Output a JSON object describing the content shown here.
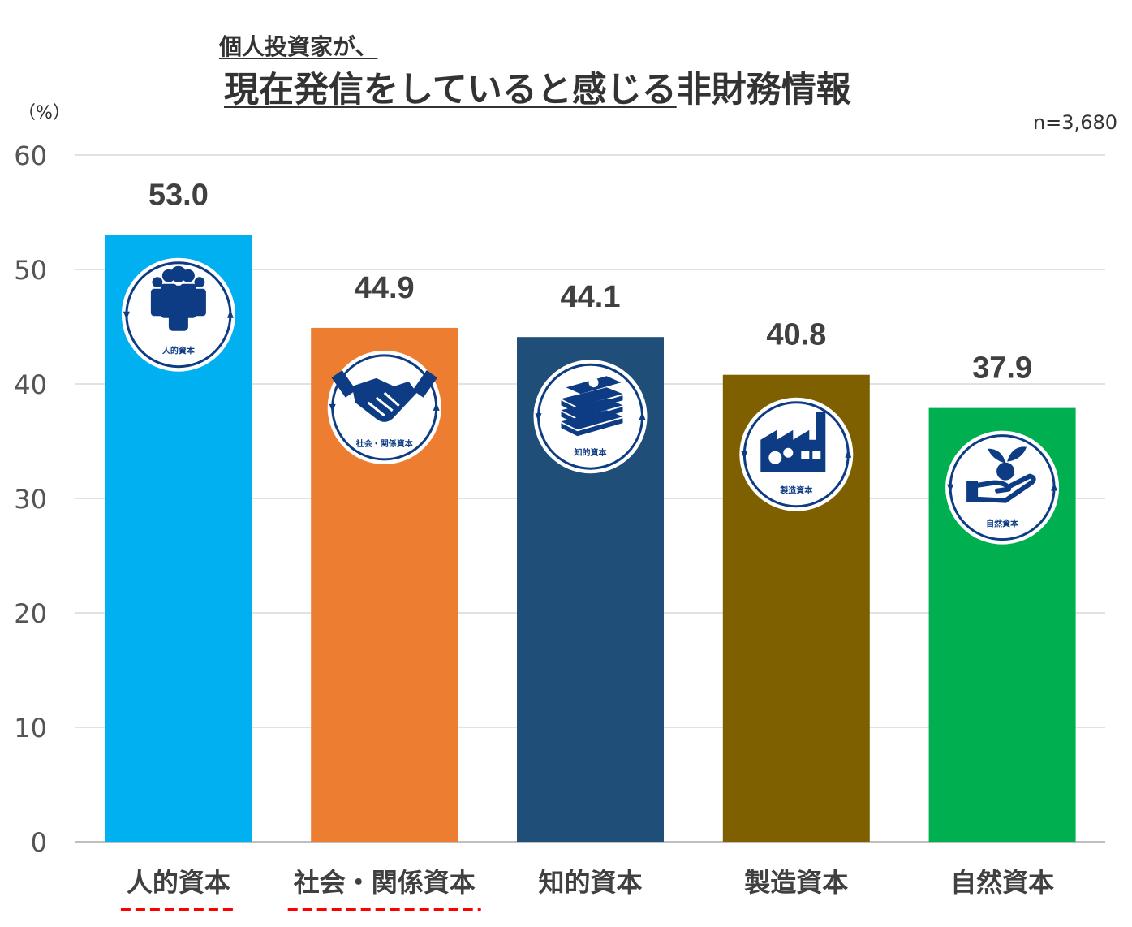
{
  "title": {
    "line1": "個人投資家が、",
    "line2_underlined": "現在発信をしていると感じる",
    "line2_rest": "非財務情報"
  },
  "unit_label": "（%）",
  "sample_size": "n=3,680",
  "chart_data": {
    "type": "bar",
    "categories": [
      "人的資本",
      "社会・関係資本",
      "知的資本",
      "製造資本",
      "自然資本"
    ],
    "values": [
      53.0,
      44.9,
      44.1,
      40.8,
      37.9
    ],
    "value_labels": [
      "53.0",
      "44.9",
      "44.1",
      "40.8",
      "37.9"
    ],
    "colors": [
      "#00B0F0",
      "#ED7D31",
      "#1F4E79",
      "#7F6000",
      "#00B050"
    ],
    "icon_labels": [
      "人的資本",
      "社会・関係資本",
      "知的資本",
      "製造資本",
      "自然資本"
    ],
    "icons": [
      "people-icon",
      "handshake-icon",
      "books-icon",
      "factory-icon",
      "plant-hand-icon"
    ],
    "highlighted_categories": [
      "人的資本",
      "社会・関係資本"
    ],
    "ylim": [
      0,
      60
    ],
    "yticks": [
      0,
      10,
      20,
      30,
      40,
      50,
      60
    ],
    "grid": true,
    "xlabel": "",
    "ylabel": ""
  }
}
